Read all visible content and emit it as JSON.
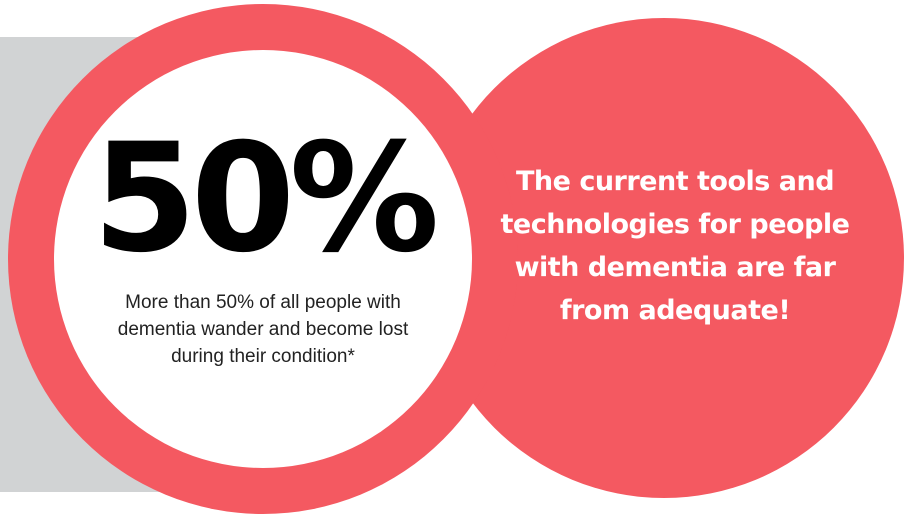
{
  "colors": {
    "accent": "#f45961",
    "panel_gray": "#d1d3d4",
    "inner_circle": "#ffffff",
    "stat_text": "#000000",
    "statement_text": "#ffffff"
  },
  "stat": {
    "value": "50%",
    "caption": "More than 50% of all people with dementia wander and become lost during their condition*"
  },
  "statement": {
    "text": "The current tools and technologies for people with dementia are far from adequate!"
  }
}
